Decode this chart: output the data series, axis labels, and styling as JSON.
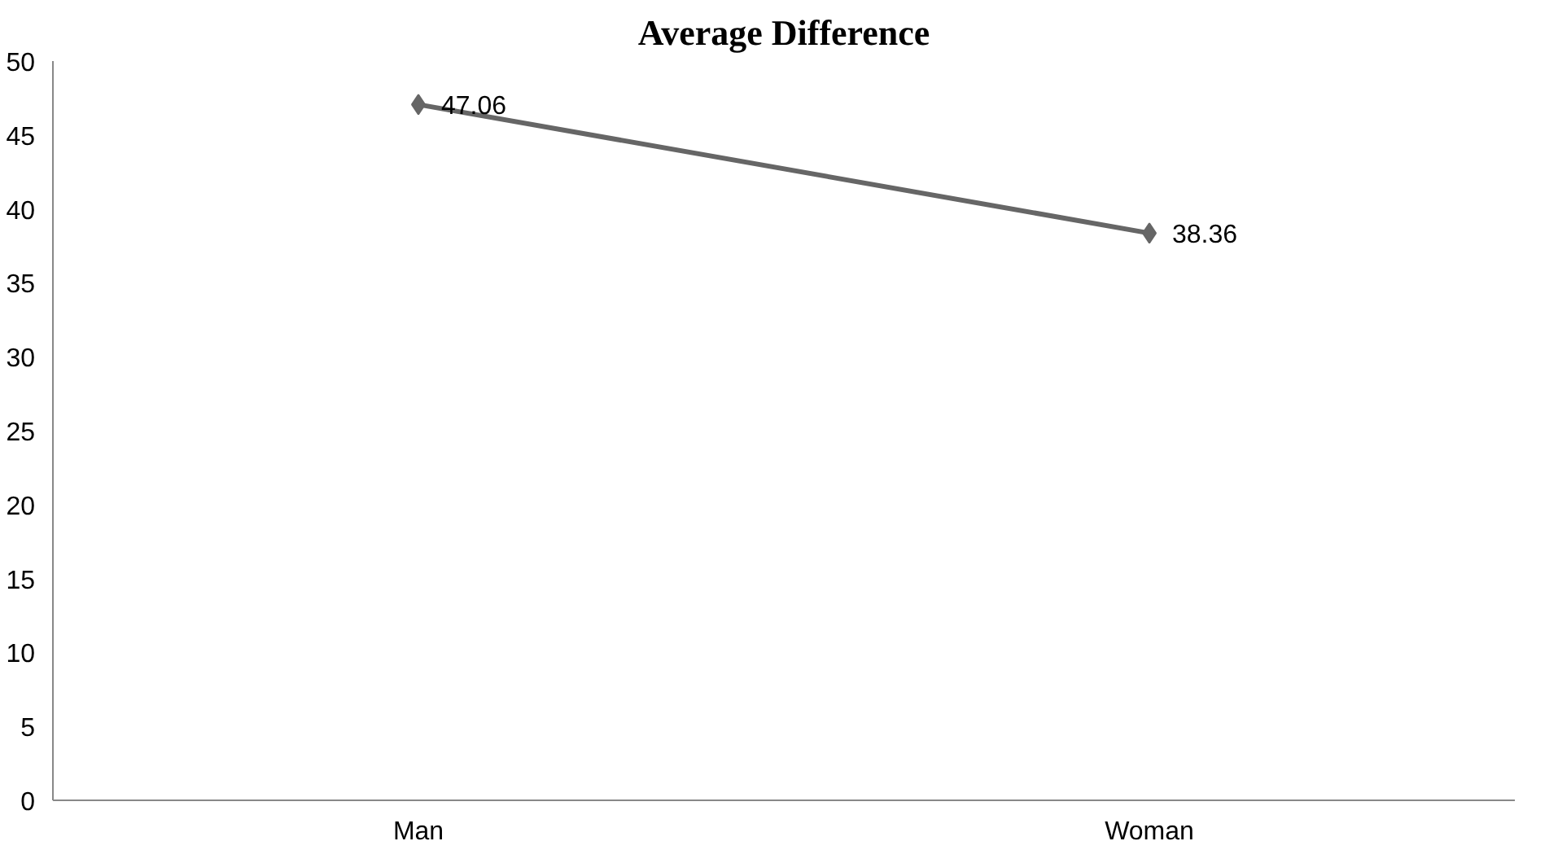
{
  "chart_data": {
    "type": "line",
    "title": "Average Difference",
    "categories": [
      "Man",
      "Woman"
    ],
    "series": [
      {
        "color": "#666666",
        "values": [
          47.06,
          38.36
        ]
      }
    ],
    "ylim": [
      0,
      50
    ],
    "yticks": [
      0,
      5,
      10,
      15,
      20,
      25,
      30,
      35,
      40,
      45,
      50
    ],
    "grid": false,
    "marker": "diamond",
    "line_style": "solid",
    "data_labels": true
  }
}
